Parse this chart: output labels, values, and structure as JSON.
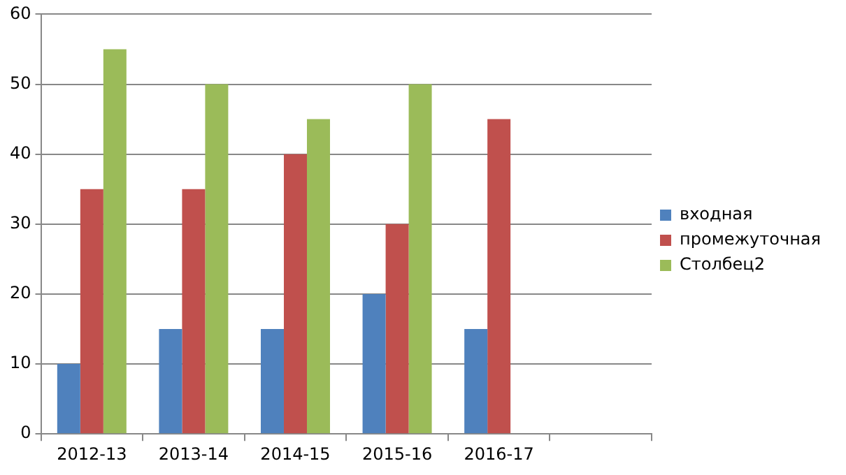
{
  "chart_data": {
    "type": "bar",
    "categories": [
      "2012-13",
      "2013-14",
      "2014-15",
      "2015-16",
      "2016-17",
      null
    ],
    "series": [
      {
        "name": "входная",
        "color": "#4f81bd",
        "values": [
          10,
          15,
          15,
          20,
          15,
          null
        ]
      },
      {
        "name": "промежуточная",
        "color": "#c0504d",
        "values": [
          35,
          35,
          40,
          30,
          45,
          null
        ]
      },
      {
        "name": "Столбец2",
        "color": "#9bbb59",
        "values": [
          55,
          50,
          45,
          50,
          null,
          null
        ]
      }
    ],
    "ylim": [
      0,
      60
    ],
    "yticks": [
      0,
      10,
      20,
      30,
      40,
      50,
      60
    ],
    "grid": "y",
    "legend": "right"
  }
}
